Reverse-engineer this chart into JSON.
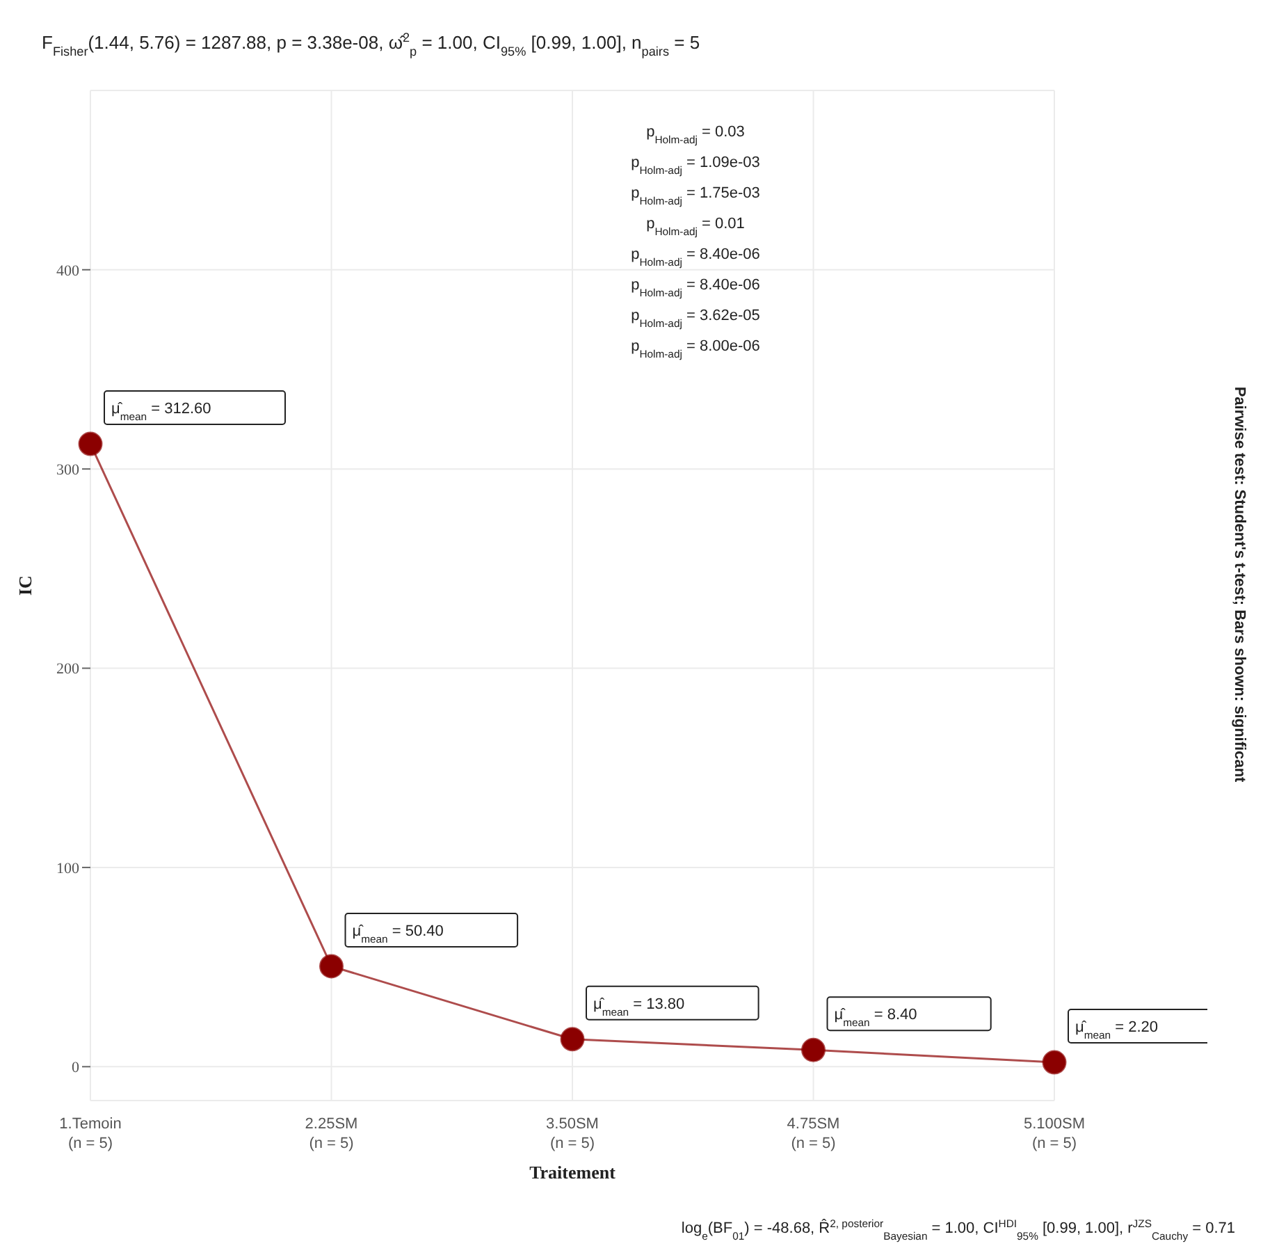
{
  "chart_data": {
    "type": "line",
    "title": "F$_{Fisher}$(1.44, 5.76) = 1287.88, p = 3.38e-08, ω̂$^{2}$$_{p}$ = 1.00, CI$_{95%}$ [0.99, 1.00], n$_{pairs}$ = 5",
    "xlabel": "Traitement",
    "ylabel": "IC",
    "categories": [
      "1.Temoin\n(n = 5)",
      "2.25SM\n(n = 5)",
      "3.50SM\n(n = 5)",
      "4.75SM\n(n = 5)",
      "5.100SM\n(n = 5)"
    ],
    "series": [
      {
        "color": "#8b0000",
        "values": [
          312.6,
          50.4,
          13.8,
          8.4,
          2.2
        ],
        "value_labels": [
          "μ̂$_{mean}$ = 312.60",
          "μ̂$_{mean}$ = 50.40",
          "μ̂$_{mean}$ = 13.80",
          "μ̂$_{mean}$ = 8.40",
          "μ̂$_{mean}$ = 2.20"
        ]
      }
    ],
    "ylim": [
      -17,
      490
    ],
    "yticks": [
      0,
      100,
      200,
      300,
      400
    ],
    "grid": true,
    "marker": "circle",
    "line_style": "solid",
    "annotations": [
      "p$_{Holm-adj}$ = 0.03",
      "p$_{Holm-adj}$ = 1.09e-03",
      "p$_{Holm-adj}$ = 1.75e-03",
      "p$_{Holm-adj}$ = 0.01",
      "p$_{Holm-adj}$ = 8.40e-06",
      "p$_{Holm-adj}$ = 8.40e-06",
      "p$_{Holm-adj}$ = 3.62e-05",
      "p$_{Holm-adj}$ = 8.00e-06",
      "log$_{e}$(BF$_{01}$) = -48.68, R̂$^{2, posterior}$$_{Bayesian}$ = 1.00, CI$^{HDI}$$_{95%}$ [0.99, 1.00], r$^{JZS}$$_{Cauchy}$ = 0.71",
      "Pairwise test: Student's t-test; Bars shown: significant"
    ]
  }
}
